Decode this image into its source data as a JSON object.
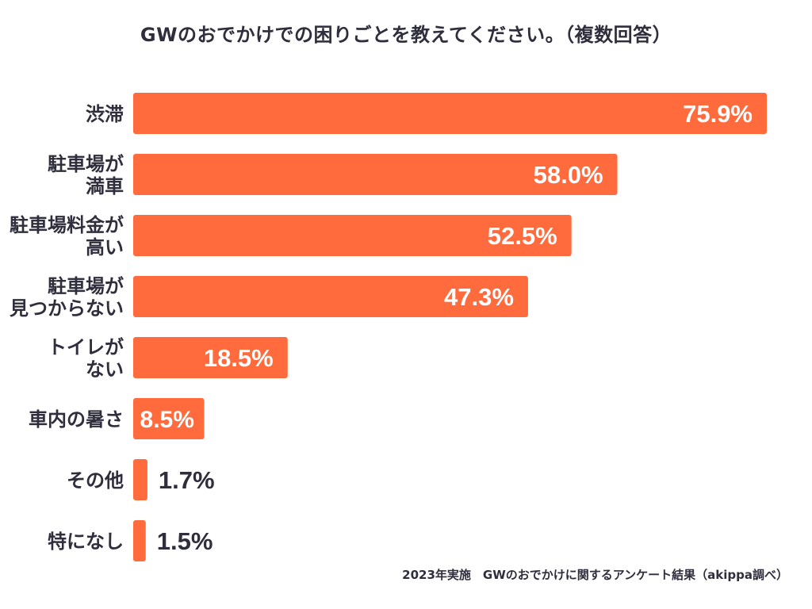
{
  "chart_data": {
    "type": "bar",
    "orientation": "horizontal",
    "title": "GWのおでかけでの困りごとを教えてください。（複数回答）",
    "categories": [
      [
        "渋滞"
      ],
      [
        "駐車場が",
        "満車"
      ],
      [
        "駐車場料金が",
        "高い"
      ],
      [
        "駐車場が",
        "見つからない"
      ],
      [
        "トイレが",
        "ない"
      ],
      [
        "車内の暑さ"
      ],
      [
        "その他"
      ],
      [
        "特になし"
      ]
    ],
    "values": [
      75.9,
      58.0,
      52.5,
      47.3,
      18.5,
      8.5,
      1.7,
      1.5
    ],
    "value_labels": [
      "75.9%",
      "58.0%",
      "52.5%",
      "47.3%",
      "18.5%",
      "8.5%",
      "1.7%",
      "1.5%"
    ],
    "xlabel": "",
    "ylabel": "",
    "xlim": [
      0,
      75.9
    ],
    "grid": false,
    "bar_color": "#ff6b3d",
    "footnote": "2023年実施　GWのおでかけに関するアンケート結果（akippa調べ）"
  }
}
